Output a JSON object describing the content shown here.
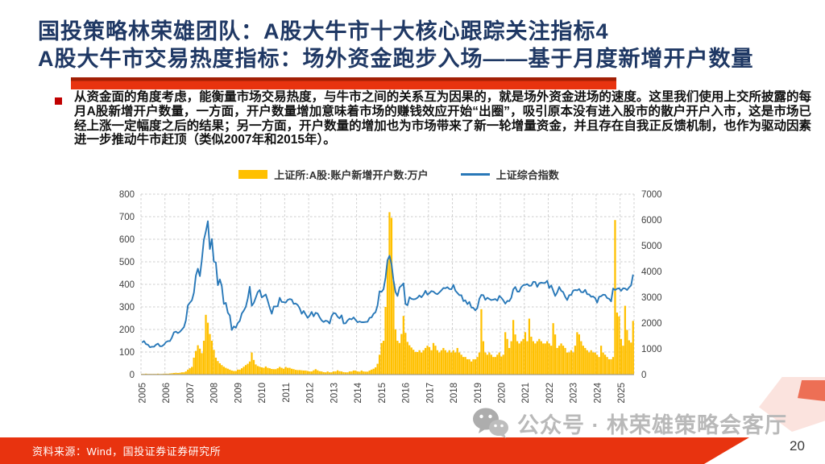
{
  "slide": {
    "title_line1": "国投策略林荣雄团队：A股大牛市十大核心跟踪关注指标4",
    "title_line2": "A股大牛市交易热度指标：场外资金跑步入场——基于月度新增开户数量",
    "body_text": "从资金面的角度考虑，能衡量市场交易热度，与牛市之间的关系互为因果的，就是场外资金进场的速度。这里我们使用上交所披露的每月A股新增开户数量，一方面，开户数量增加意味着市场的赚钱效应开始“出圈”，吸引原本没有进入股市的散户开户入市，这是市场已经上涨一定幅度之后的结果；另一方面，开户数量的增加也为市场带来了新一轮增量资金，并且存在自我正反馈机制，也作为驱动因素进一步推动牛市赶顶（类似2007年和2015年）。",
    "source_text": "资料来源：Wind，国投证券证券研究所",
    "watermark_text": "公众号 · 林荣雄策略会客厅",
    "page_number": "20"
  },
  "colors": {
    "title": "#1F3864",
    "accent_red": "#E8330F",
    "accent_red_dark": "#A11F05",
    "bullet": "#C00000",
    "bar": "#FFC000",
    "line": "#2878B8",
    "grid": "#CDCDCD",
    "axis_line": "#8C8C8C",
    "axis_text": "#404040",
    "watermark": "#B9B9B9"
  },
  "chart_data": {
    "type": "bar+line",
    "title": "",
    "legend_position": "top",
    "grid": true,
    "legend": [
      {
        "label": "上证所:A股:账户新增开户数:万户",
        "type": "bar",
        "color": "#FFC000"
      },
      {
        "label": "上证综合指数",
        "type": "line",
        "color": "#2878B8"
      }
    ],
    "x_tick_labels": [
      "2005",
      "2006",
      "2007",
      "2008",
      "2009",
      "2010",
      "2011",
      "2012",
      "2013",
      "2014",
      "2015",
      "2016",
      "2017",
      "2018",
      "2019",
      "2020",
      "2021",
      "2022",
      "2023",
      "2024",
      "2025"
    ],
    "months_per_year": 12,
    "left_axis": {
      "min": 0,
      "max": 800,
      "step": 100
    },
    "right_axis": {
      "min": 0,
      "max": 7000,
      "step": 1000
    },
    "series": [
      {
        "name": "上证所:A股:账户新增开户数:万户",
        "type": "bar",
        "axis": "left",
        "monthly_values": [
          3,
          3,
          4,
          3,
          3,
          3,
          3,
          3,
          4,
          3,
          3,
          4,
          4,
          4,
          5,
          6,
          7,
          8,
          7,
          8,
          10,
          10,
          14,
          22,
          28,
          34,
          75,
          105,
          130,
          115,
          95,
          150,
          265,
          230,
          180,
          150,
          110,
          75,
          60,
          50,
          42,
          35,
          30,
          26,
          22,
          18,
          16,
          16,
          22,
          22,
          28,
          35,
          42,
          48,
          58,
          98,
          65,
          45,
          38,
          35,
          32,
          30,
          36,
          30,
          28,
          25,
          24,
          24,
          28,
          34,
          30,
          26,
          34,
          30,
          30,
          26,
          24,
          21,
          20,
          20,
          19,
          18,
          18,
          16,
          14,
          14,
          19,
          24,
          19,
          15,
          14,
          11,
          10,
          14,
          10,
          10,
          14,
          14,
          19,
          15,
          14,
          11,
          10,
          10,
          14,
          14,
          18,
          18,
          14,
          13,
          18,
          14,
          13,
          13,
          18,
          22,
          26,
          32,
          48,
          88,
          140,
          150,
          300,
          505,
          720,
          695,
          415,
          200,
          150,
          140,
          180,
          260,
          185,
          145,
          130,
          120,
          110,
          100,
          100,
          108,
          98,
          108,
          118,
          128,
          122,
          108,
          140,
          128,
          108,
          98,
          108,
          118,
          108,
          98,
          108,
          98,
          108,
          98,
          118,
          98,
          88,
          78,
          78,
          68,
          68,
          58,
          68,
          68,
          78,
          98,
          290,
          148,
          98,
          88,
          98,
          88,
          78,
          78,
          88,
          98,
          80,
          88,
          188,
          158,
          118,
          148,
          242,
          178,
          148,
          138,
          148,
          158,
          188,
          148,
          248,
          168,
          148,
          138,
          148,
          158,
          148,
          138,
          138,
          148,
          138,
          128,
          228,
          178,
          118,
          128,
          138,
          128,
          118,
          98,
          98,
          108,
          98,
          128,
          188,
          178,
          148,
          128,
          118,
          108,
          98,
          108,
          98,
          98,
          88,
          78,
          128,
          98,
          88,
          78,
          68,
          68,
          78,
          685,
          275,
          258,
          158,
          128,
          305,
          198,
          152,
          142,
          238
        ]
      },
      {
        "name": "上证综合指数",
        "type": "line",
        "axis": "right",
        "monthly_values": [
          1240,
          1300,
          1180,
          1160,
          1060,
          1080,
          1080,
          1160,
          1200,
          1100,
          1100,
          1160,
          1260,
          1300,
          1300,
          1440,
          1640,
          1670,
          1610,
          1660,
          1750,
          1840,
          2100,
          2680,
          2790,
          2880,
          3180,
          3840,
          4110,
          3820,
          4470,
          5220,
          5550,
          5950,
          4870,
          5260,
          4380,
          4350,
          3470,
          3690,
          3430,
          2740,
          2780,
          2400,
          2290,
          1730,
          1870,
          1820,
          2000,
          2080,
          2370,
          2480,
          2630,
          2960,
          3410,
          2670,
          2780,
          2990,
          3200,
          3280,
          2990,
          3050,
          3110,
          2870,
          2590,
          2360,
          2640,
          2640,
          2650,
          2980,
          2820,
          2810,
          2790,
          2900,
          2930,
          2910,
          2740,
          2760,
          2700,
          2570,
          2360,
          2470,
          2330,
          2200,
          2290,
          2430,
          2260,
          2400,
          2370,
          2220,
          2100,
          2040,
          2090,
          2070,
          1980,
          2270,
          2390,
          2370,
          2240,
          2180,
          2300,
          1980,
          1990,
          2100,
          2170,
          2140,
          2220,
          2120,
          2030,
          2060,
          2030,
          2030,
          2040,
          2050,
          2200,
          2220,
          2360,
          2420,
          2680,
          3230,
          3210,
          3310,
          3750,
          4440,
          4610,
          4280,
          3660,
          3210,
          3050,
          3380,
          3450,
          3540,
          2740,
          2690,
          3000,
          2940,
          2920,
          2930,
          2980,
          3070,
          3000,
          3100,
          3250,
          3100,
          3160,
          3240,
          3220,
          3150,
          3120,
          3190,
          3270,
          3360,
          3350,
          3390,
          3320,
          3310,
          3480,
          3260,
          3170,
          3080,
          3080,
          2850,
          2880,
          2730,
          2820,
          2600,
          2590,
          2490,
          2580,
          2940,
          3090,
          3080,
          2900,
          2980,
          2930,
          2890,
          2910,
          2930,
          2870,
          3050,
          2980,
          2880,
          2750,
          2860,
          2850,
          2980,
          3310,
          3400,
          3220,
          3220,
          3390,
          3470,
          3480,
          3510,
          3440,
          3450,
          3600,
          3590,
          3400,
          3540,
          3570,
          3550,
          3560,
          3640,
          3360,
          3460,
          3250,
          3050,
          3190,
          3400,
          3250,
          3200,
          3020,
          2890,
          3080,
          3090,
          3260,
          3280,
          3270,
          3320,
          3200,
          3190,
          3290,
          3120,
          3110,
          3020,
          3030,
          2970,
          2790,
          3020,
          3040,
          3100,
          3090,
          2970,
          2940,
          2840,
          3340,
          3280,
          3330,
          3350,
          3250,
          3350,
          3340,
          3280,
          3380,
          3460,
          3880
        ]
      }
    ]
  }
}
